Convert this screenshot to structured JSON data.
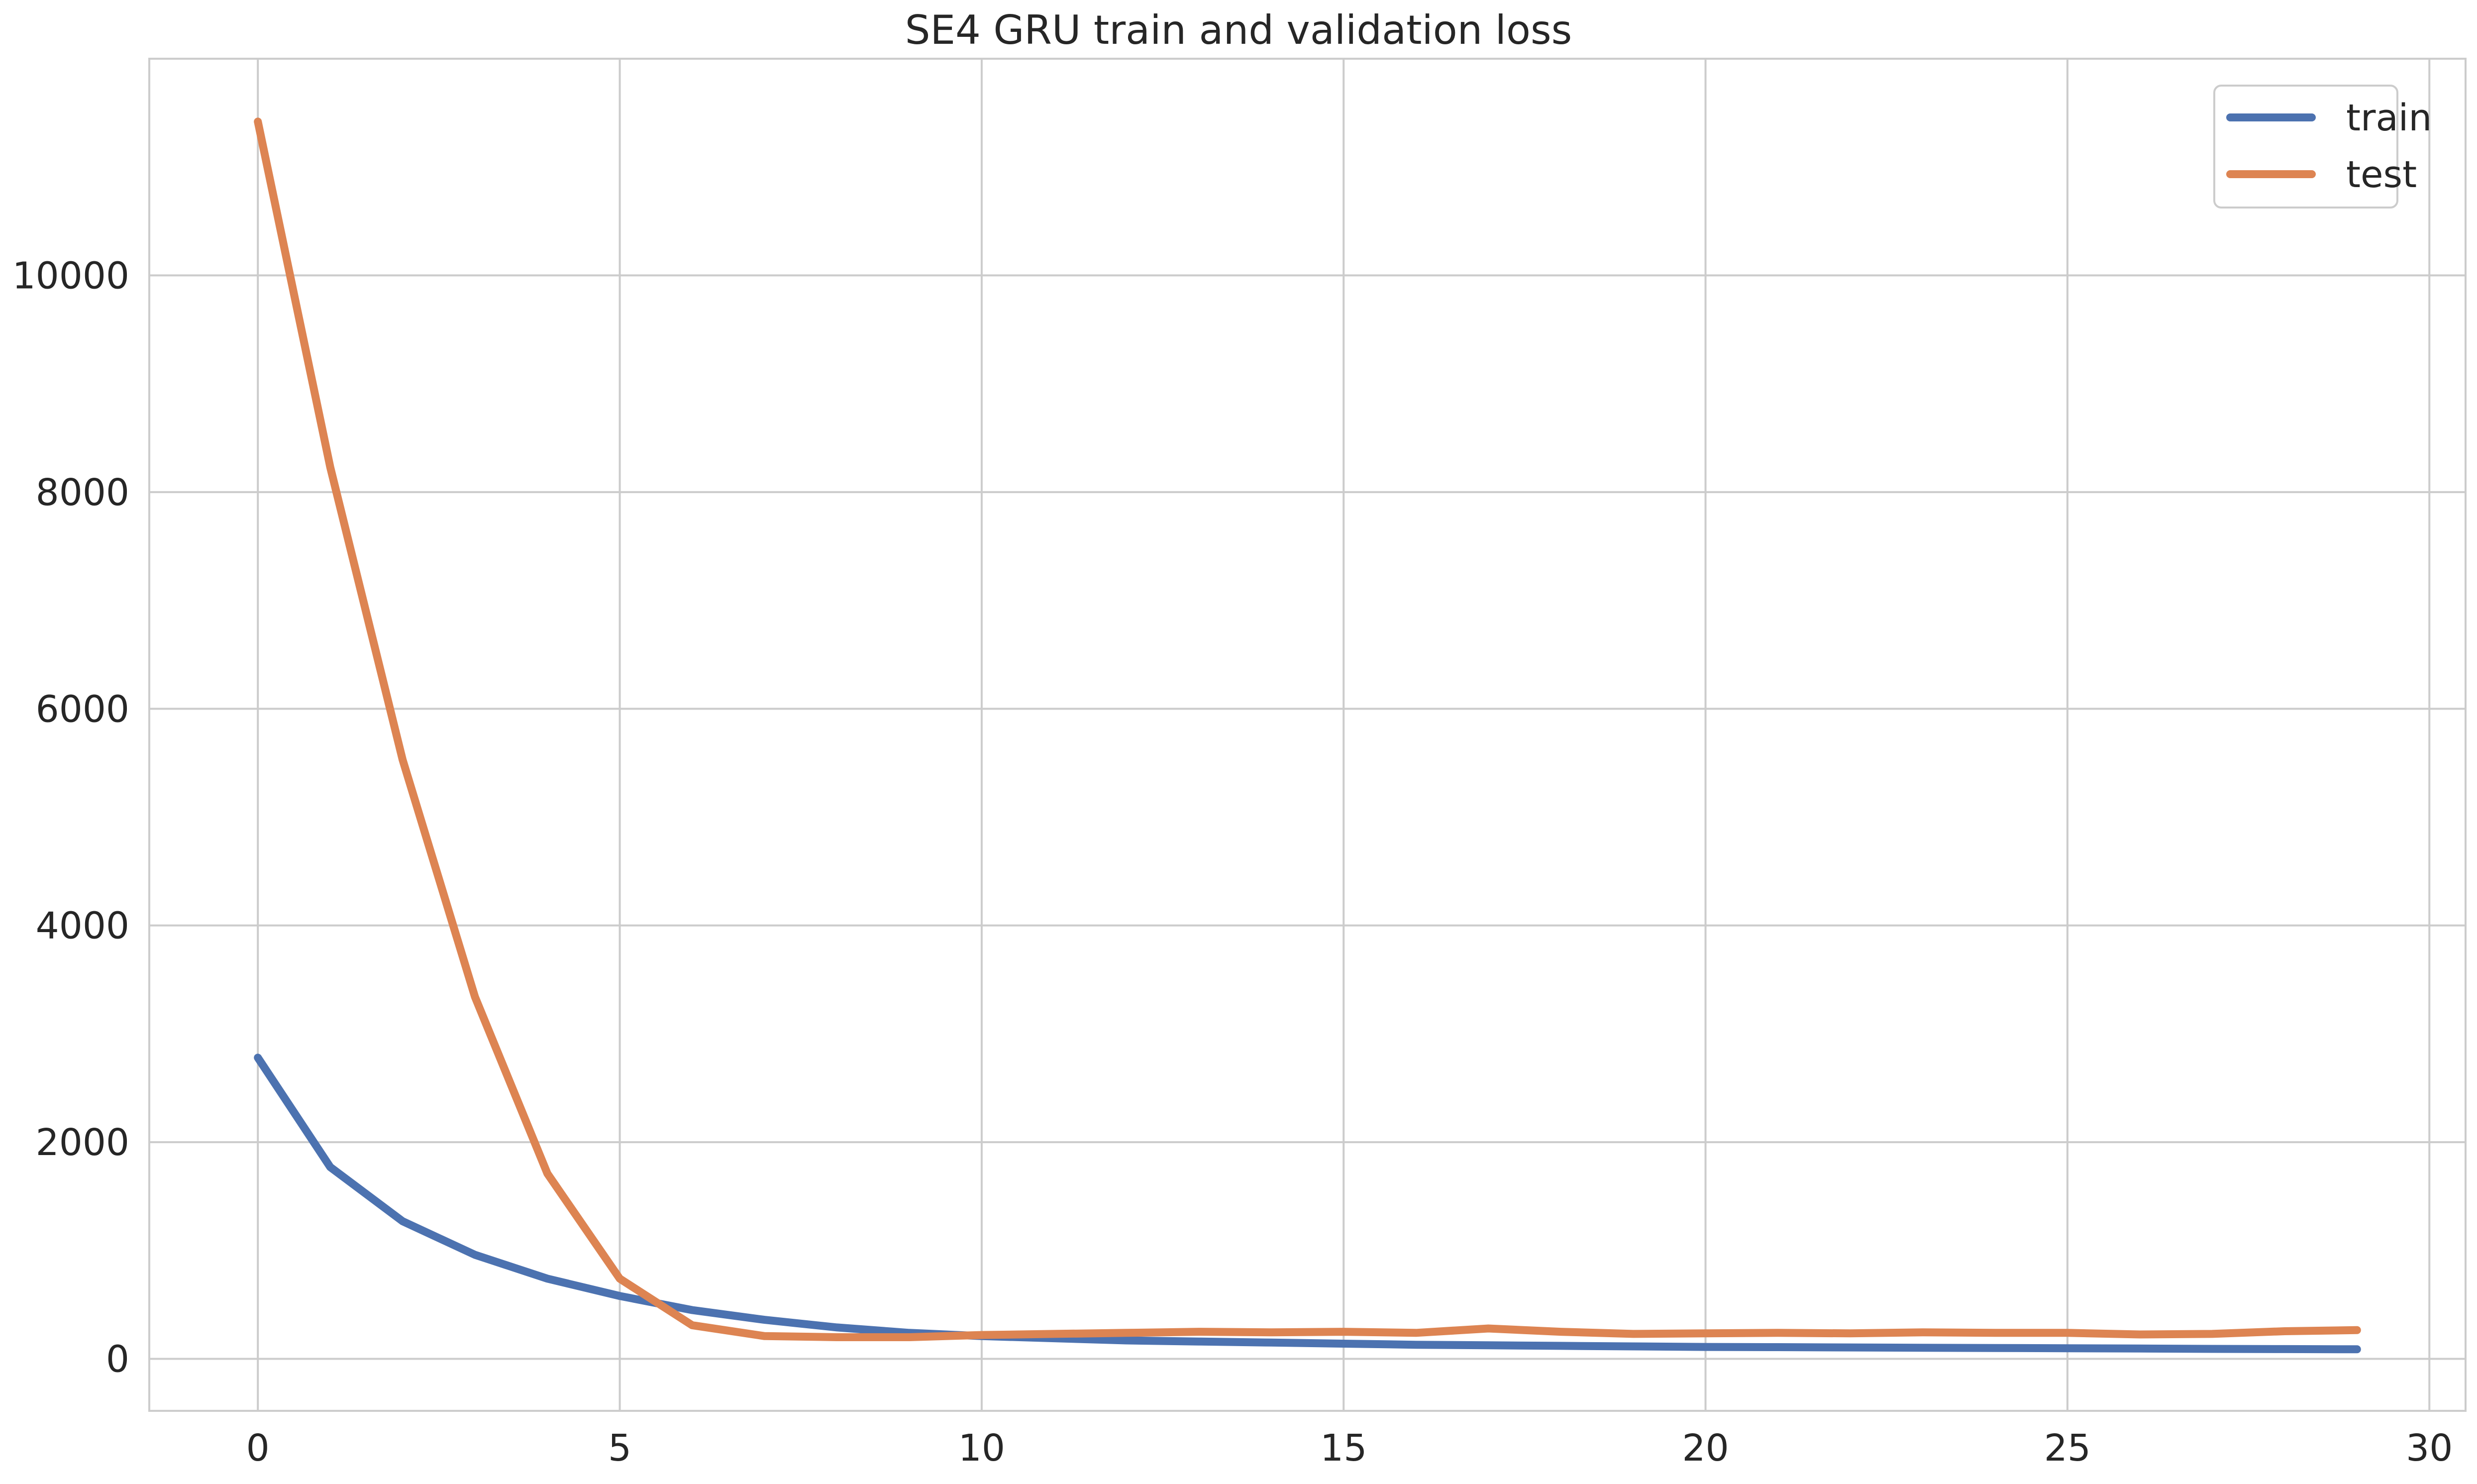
{
  "chart_data": {
    "type": "line",
    "title": "SE4 GRU train and validation loss",
    "xlabel": "",
    "ylabel": "",
    "xlim": [
      -1.5,
      30.5
    ],
    "ylim": [
      -480,
      12000
    ],
    "xticks": [
      0,
      5,
      10,
      15,
      20,
      25,
      30
    ],
    "yticks": [
      0,
      2000,
      4000,
      6000,
      8000,
      10000
    ],
    "x_tick_labels": [
      "0",
      "5",
      "10",
      "15",
      "20",
      "25",
      "30"
    ],
    "y_tick_labels": [
      "0",
      "2000",
      "4000",
      "6000",
      "8000",
      "10000"
    ],
    "grid": true,
    "legend_position": "top-right",
    "x": [
      0,
      1,
      2,
      3,
      4,
      5,
      6,
      7,
      8,
      9,
      10,
      11,
      12,
      13,
      14,
      15,
      16,
      17,
      18,
      19,
      20,
      21,
      22,
      23,
      24,
      25,
      26,
      27,
      28,
      29
    ],
    "series": [
      {
        "name": "train",
        "color": "#4c72b0",
        "values": [
          2780,
          1770,
          1270,
          960,
          740,
          580,
          450,
          360,
          290,
          240,
          210,
          190,
          170,
          160,
          150,
          140,
          130,
          125,
          120,
          115,
          110,
          108,
          105,
          102,
          100,
          98,
          95,
          92,
          90,
          88
        ]
      },
      {
        "name": "test",
        "color": "#dd8452",
        "values": [
          11420,
          8230,
          5530,
          3340,
          1710,
          740,
          310,
          210,
          200,
          200,
          220,
          230,
          240,
          250,
          245,
          250,
          240,
          280,
          250,
          230,
          235,
          240,
          235,
          245,
          240,
          240,
          225,
          230,
          255,
          265
        ]
      }
    ]
  }
}
